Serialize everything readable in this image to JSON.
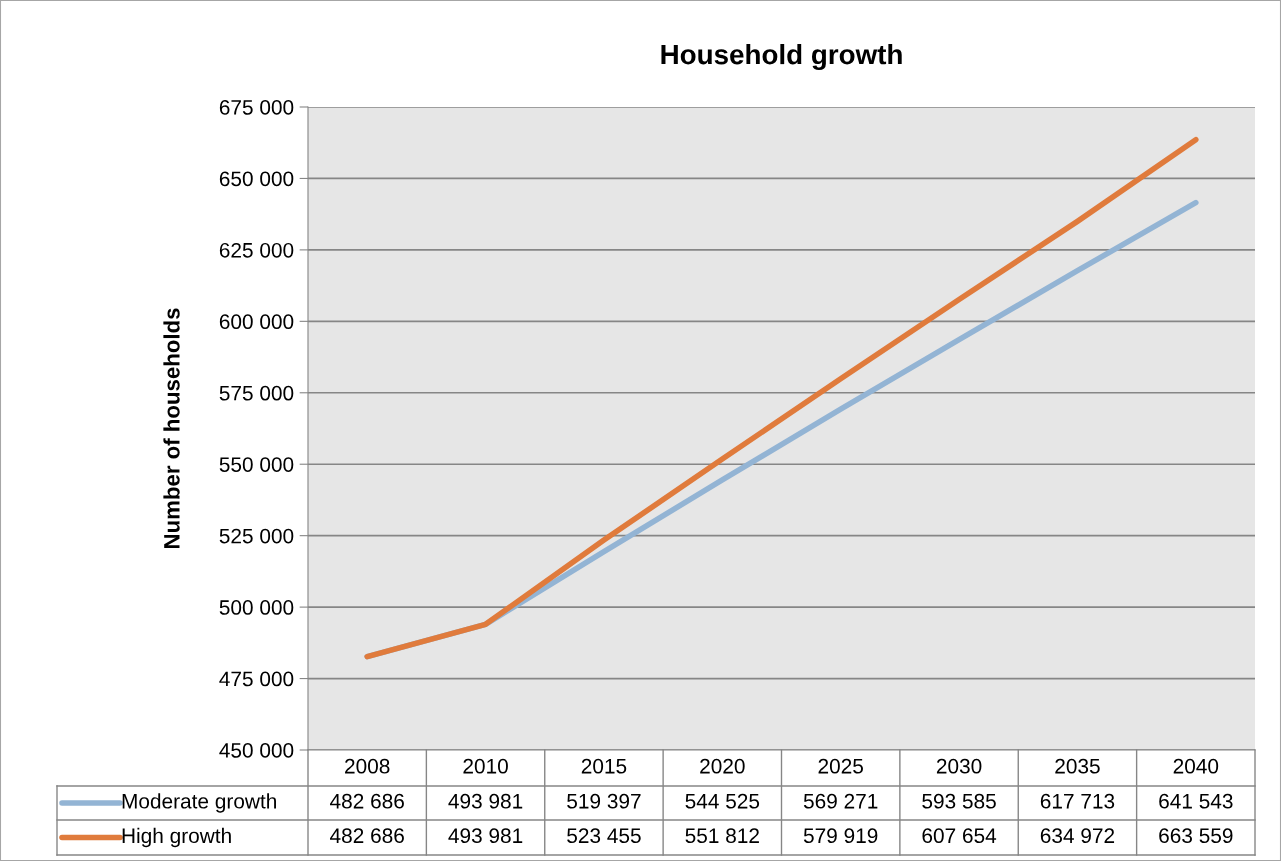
{
  "chart_data": {
    "type": "line",
    "title": "Household growth",
    "ylabel": "Number of households",
    "categories": [
      "2008",
      "2010",
      "2015",
      "2020",
      "2025",
      "2030",
      "2035",
      "2040"
    ],
    "series": [
      {
        "name": "Moderate growth",
        "color": "#93b4d4",
        "values": [
          482686,
          493981,
          519397,
          544525,
          569271,
          593585,
          617713,
          641543
        ],
        "value_labels": [
          "482 686",
          "493 981",
          "519 397",
          "544 525",
          "569 271",
          "593 585",
          "617 713",
          "641 543"
        ]
      },
      {
        "name": "High growth",
        "color": "#e07b3c",
        "values": [
          482686,
          493981,
          523455,
          551812,
          579919,
          607654,
          634972,
          663559
        ],
        "value_labels": [
          "482 686",
          "493 981",
          "523 455",
          "551 812",
          "579 919",
          "607 654",
          "634 972",
          "663 559"
        ]
      }
    ],
    "ylim": [
      450000,
      675000
    ],
    "yticks": [
      {
        "value": 450000,
        "label": "450 000"
      },
      {
        "value": 475000,
        "label": "475 000"
      },
      {
        "value": 500000,
        "label": "500 000"
      },
      {
        "value": 525000,
        "label": "525 000"
      },
      {
        "value": 550000,
        "label": "550 000"
      },
      {
        "value": 575000,
        "label": "575 000"
      },
      {
        "value": 600000,
        "label": "600 000"
      },
      {
        "value": 625000,
        "label": "625 000"
      },
      {
        "value": 650000,
        "label": "650 000"
      },
      {
        "value": 675000,
        "label": "675 000"
      }
    ],
    "grid": "y",
    "legend": "bottom",
    "marker": "none",
    "line_style": "solid"
  }
}
